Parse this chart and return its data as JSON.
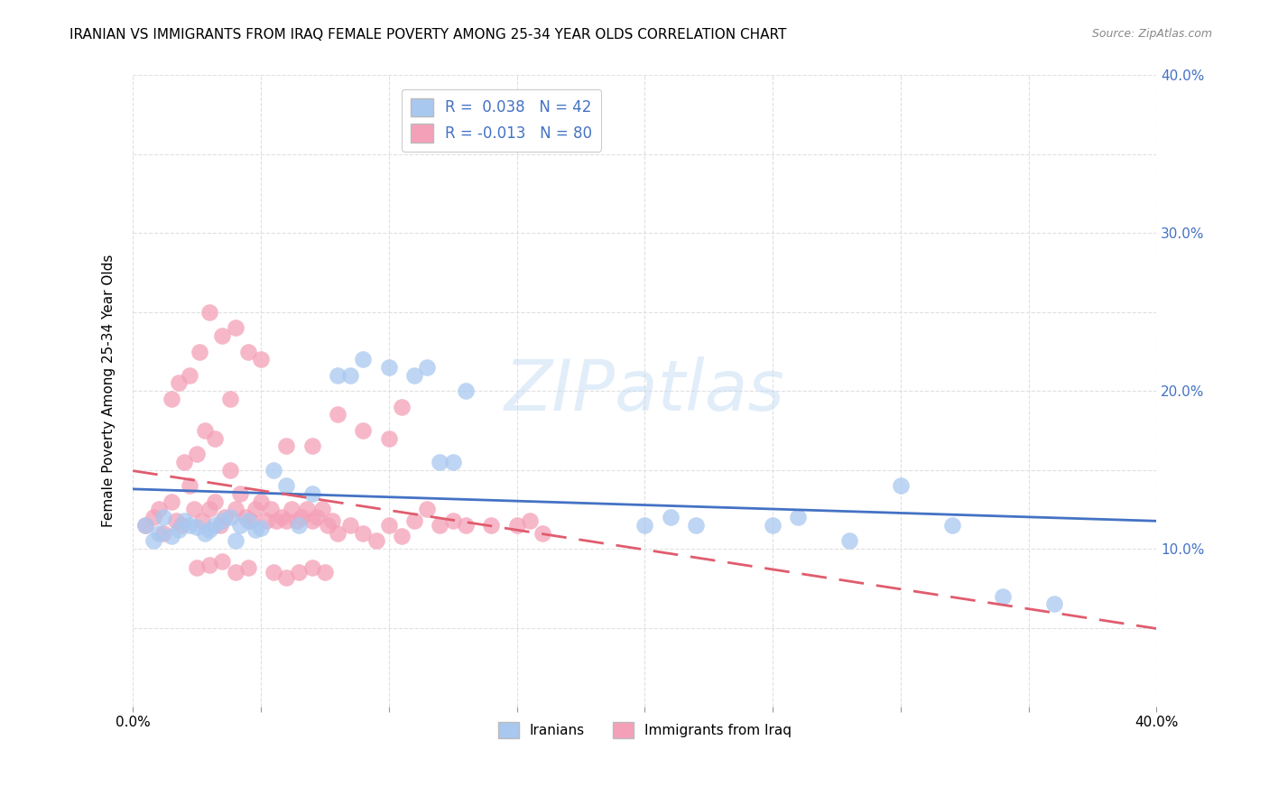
{
  "title": "IRANIAN VS IMMIGRANTS FROM IRAQ FEMALE POVERTY AMONG 25-34 YEAR OLDS CORRELATION CHART",
  "source": "Source: ZipAtlas.com",
  "ylabel": "Female Poverty Among 25-34 Year Olds",
  "xlim": [
    0.0,
    0.4
  ],
  "ylim": [
    0.0,
    0.4
  ],
  "xticks": [
    0.0,
    0.05,
    0.1,
    0.15,
    0.2,
    0.25,
    0.3,
    0.35,
    0.4
  ],
  "yticks": [
    0.0,
    0.05,
    0.1,
    0.15,
    0.2,
    0.25,
    0.3,
    0.35,
    0.4
  ],
  "watermark": "ZIPatlas",
  "color_blue": "#A8C8F0",
  "color_pink": "#F4A0B8",
  "color_blue_line": "#4472C4",
  "color_pink_line": "#E05C6E",
  "color_blue_dark": "#4472C4",
  "grid_color": "#DDDDDD",
  "background_color": "#FFFFFF",
  "iranians_x": [
    0.005,
    0.008,
    0.01,
    0.012,
    0.015,
    0.018,
    0.02,
    0.022,
    0.025,
    0.028,
    0.03,
    0.032,
    0.035,
    0.038,
    0.04,
    0.042,
    0.045,
    0.048,
    0.05,
    0.055,
    0.06,
    0.065,
    0.07,
    0.08,
    0.085,
    0.09,
    0.1,
    0.11,
    0.115,
    0.12,
    0.125,
    0.13,
    0.2,
    0.21,
    0.22,
    0.25,
    0.26,
    0.28,
    0.3,
    0.32,
    0.34,
    0.36
  ],
  "iranians_y": [
    0.115,
    0.105,
    0.11,
    0.12,
    0.108,
    0.112,
    0.118,
    0.115,
    0.114,
    0.11,
    0.112,
    0.115,
    0.118,
    0.12,
    0.105,
    0.115,
    0.118,
    0.112,
    0.113,
    0.15,
    0.14,
    0.115,
    0.135,
    0.21,
    0.21,
    0.22,
    0.215,
    0.21,
    0.215,
    0.155,
    0.155,
    0.2,
    0.115,
    0.12,
    0.115,
    0.115,
    0.12,
    0.105,
    0.14,
    0.115,
    0.07,
    0.065
  ],
  "iraq_x": [
    0.005,
    0.008,
    0.01,
    0.012,
    0.015,
    0.017,
    0.019,
    0.022,
    0.024,
    0.027,
    0.03,
    0.032,
    0.034,
    0.036,
    0.038,
    0.04,
    0.042,
    0.044,
    0.046,
    0.048,
    0.05,
    0.052,
    0.054,
    0.056,
    0.058,
    0.06,
    0.062,
    0.064,
    0.066,
    0.068,
    0.07,
    0.072,
    0.074,
    0.076,
    0.078,
    0.08,
    0.085,
    0.09,
    0.095,
    0.1,
    0.105,
    0.11,
    0.115,
    0.12,
    0.125,
    0.13,
    0.14,
    0.15,
    0.155,
    0.16,
    0.03,
    0.035,
    0.04,
    0.045,
    0.05,
    0.02,
    0.025,
    0.028,
    0.032,
    0.038,
    0.015,
    0.018,
    0.022,
    0.026,
    0.06,
    0.07,
    0.08,
    0.09,
    0.1,
    0.105,
    0.025,
    0.03,
    0.035,
    0.04,
    0.045,
    0.055,
    0.06,
    0.065,
    0.07,
    0.075
  ],
  "iraq_y": [
    0.115,
    0.12,
    0.125,
    0.11,
    0.13,
    0.118,
    0.115,
    0.14,
    0.125,
    0.118,
    0.125,
    0.13,
    0.115,
    0.12,
    0.15,
    0.125,
    0.135,
    0.12,
    0.118,
    0.125,
    0.13,
    0.118,
    0.125,
    0.118,
    0.12,
    0.118,
    0.125,
    0.118,
    0.12,
    0.125,
    0.118,
    0.12,
    0.125,
    0.115,
    0.118,
    0.11,
    0.115,
    0.11,
    0.105,
    0.115,
    0.108,
    0.118,
    0.125,
    0.115,
    0.118,
    0.115,
    0.115,
    0.115,
    0.118,
    0.11,
    0.25,
    0.235,
    0.24,
    0.225,
    0.22,
    0.155,
    0.16,
    0.175,
    0.17,
    0.195,
    0.195,
    0.205,
    0.21,
    0.225,
    0.165,
    0.165,
    0.185,
    0.175,
    0.17,
    0.19,
    0.088,
    0.09,
    0.092,
    0.085,
    0.088,
    0.085,
    0.082,
    0.085,
    0.088,
    0.085
  ]
}
